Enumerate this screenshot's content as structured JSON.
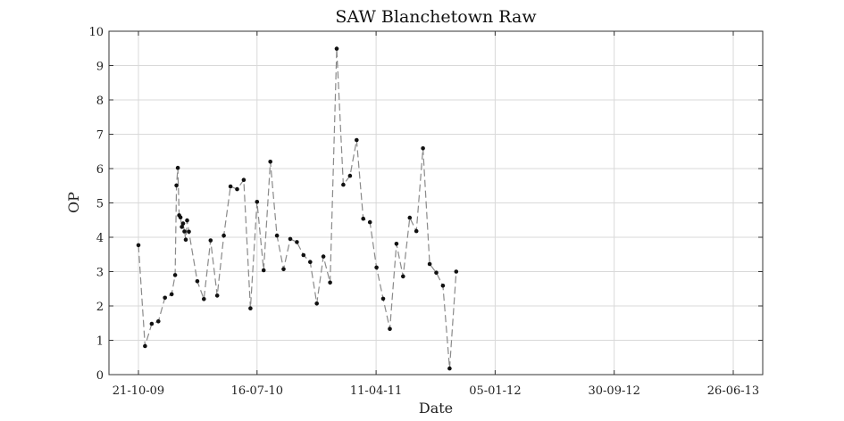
{
  "chart_data": {
    "type": "line",
    "title": "SAW Blanchetown Raw",
    "xlabel": "Date",
    "ylabel": "OP",
    "x_tick_labels": [
      "21-10-09",
      "16-07-10",
      "11-04-11",
      "05-01-12",
      "30-09-12",
      "26-06-13"
    ],
    "y_tick_labels": [
      "0",
      "1",
      "2",
      "3",
      "4",
      "5",
      "6",
      "7",
      "8",
      "9",
      "10"
    ],
    "ylim": [
      0,
      10
    ],
    "grid": true,
    "series": [
      {
        "name": "",
        "color": "#8a8a8a",
        "marker_color": "#111111",
        "points": [
          [
            "21-10-09",
            3.77
          ],
          [
            "05-11-09",
            0.83
          ],
          [
            "20-11-09",
            1.48
          ],
          [
            "05-12-09",
            1.55
          ],
          [
            "20-12-09",
            2.24
          ],
          [
            "04-01-10",
            2.34
          ],
          [
            "12-01-10",
            2.9
          ],
          [
            "15-01-10",
            5.51
          ],
          [
            "18-01-10",
            6.02
          ],
          [
            "21-01-10",
            4.64
          ],
          [
            "24-01-10",
            4.58
          ],
          [
            "27-01-10",
            4.3
          ],
          [
            "30-01-10",
            4.4
          ],
          [
            "02-02-10",
            4.17
          ],
          [
            "05-02-10",
            3.93
          ],
          [
            "08-02-10",
            4.49
          ],
          [
            "12-02-10",
            4.16
          ],
          [
            "03-03-10",
            2.72
          ],
          [
            "18-03-10",
            2.2
          ],
          [
            "02-04-10",
            3.91
          ],
          [
            "17-04-10",
            2.3
          ],
          [
            "02-05-10",
            4.05
          ],
          [
            "17-05-10",
            5.48
          ],
          [
            "01-06-10",
            5.4
          ],
          [
            "16-06-10",
            5.67
          ],
          [
            "01-07-10",
            1.93
          ],
          [
            "16-07-10",
            5.03
          ],
          [
            "31-07-10",
            3.04
          ],
          [
            "15-08-10",
            6.2
          ],
          [
            "30-08-10",
            4.05
          ],
          [
            "14-09-10",
            3.07
          ],
          [
            "29-09-10",
            3.95
          ],
          [
            "14-10-10",
            3.86
          ],
          [
            "29-10-10",
            3.48
          ],
          [
            "13-11-10",
            3.28
          ],
          [
            "28-11-10",
            2.07
          ],
          [
            "13-12-10",
            3.44
          ],
          [
            "28-12-10",
            2.68
          ],
          [
            "12-01-11",
            9.49
          ],
          [
            "27-01-11",
            5.53
          ],
          [
            "11-02-11",
            5.79
          ],
          [
            "26-02-11",
            6.83
          ],
          [
            "13-03-11",
            4.54
          ],
          [
            "28-03-11",
            4.44
          ],
          [
            "12-04-11",
            3.12
          ],
          [
            "27-04-11",
            2.21
          ],
          [
            "12-05-11",
            1.33
          ],
          [
            "27-05-11",
            3.81
          ],
          [
            "11-06-11",
            2.86
          ],
          [
            "26-06-11",
            4.57
          ],
          [
            "11-07-11",
            4.18
          ],
          [
            "26-07-11",
            6.59
          ],
          [
            "10-08-11",
            3.22
          ],
          [
            "25-08-11",
            2.97
          ],
          [
            "09-09-11",
            2.59
          ],
          [
            "24-09-11",
            0.18
          ],
          [
            "09-10-11",
            3.0
          ]
        ]
      }
    ]
  }
}
